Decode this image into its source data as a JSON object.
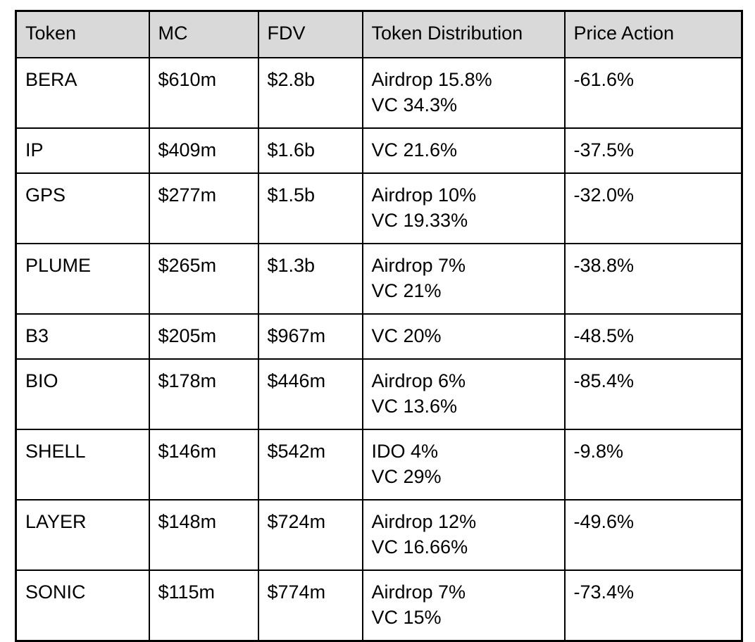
{
  "table": {
    "header_bg": "#d9d9d9",
    "border_color": "#000000",
    "columns": [
      {
        "label": "Token"
      },
      {
        "label": "MC"
      },
      {
        "label": "FDV"
      },
      {
        "label": "Token Distribution"
      },
      {
        "label": "Price Action"
      }
    ],
    "rows": [
      {
        "token": "BERA",
        "mc": "$610m",
        "fdv": "$2.8b",
        "distribution": [
          "Airdrop 15.8%",
          "VC 34.3%"
        ],
        "price_action": "-61.6%"
      },
      {
        "token": "IP",
        "mc": "$409m",
        "fdv": "$1.6b",
        "distribution": [
          "VC 21.6%"
        ],
        "price_action": "-37.5%"
      },
      {
        "token": "GPS",
        "mc": "$277m",
        "fdv": "$1.5b",
        "distribution": [
          "Airdrop 10%",
          "VC 19.33%"
        ],
        "price_action": "-32.0%"
      },
      {
        "token": "PLUME",
        "mc": "$265m",
        "fdv": "$1.3b",
        "distribution": [
          "Airdrop 7%",
          "VC 21%"
        ],
        "price_action": "-38.8%"
      },
      {
        "token": "B3",
        "mc": "$205m",
        "fdv": "$967m",
        "distribution": [
          "VC 20%"
        ],
        "price_action": "-48.5%"
      },
      {
        "token": "BIO",
        "mc": "$178m",
        "fdv": "$446m",
        "distribution": [
          "Airdrop 6%",
          "VC 13.6%"
        ],
        "price_action": "-85.4%"
      },
      {
        "token": "SHELL",
        "mc": "$146m",
        "fdv": "$542m",
        "distribution": [
          "IDO 4%",
          "VC 29%"
        ],
        "price_action": "-9.8%"
      },
      {
        "token": "LAYER",
        "mc": "$148m",
        "fdv": "$724m",
        "distribution": [
          "Airdrop 12%",
          "VC 16.66%"
        ],
        "price_action": "-49.6%"
      },
      {
        "token": "SONIC",
        "mc": "$115m",
        "fdv": "$774m",
        "distribution": [
          "Airdrop 7%",
          "VC 15%"
        ],
        "price_action": "-73.4%"
      }
    ]
  }
}
